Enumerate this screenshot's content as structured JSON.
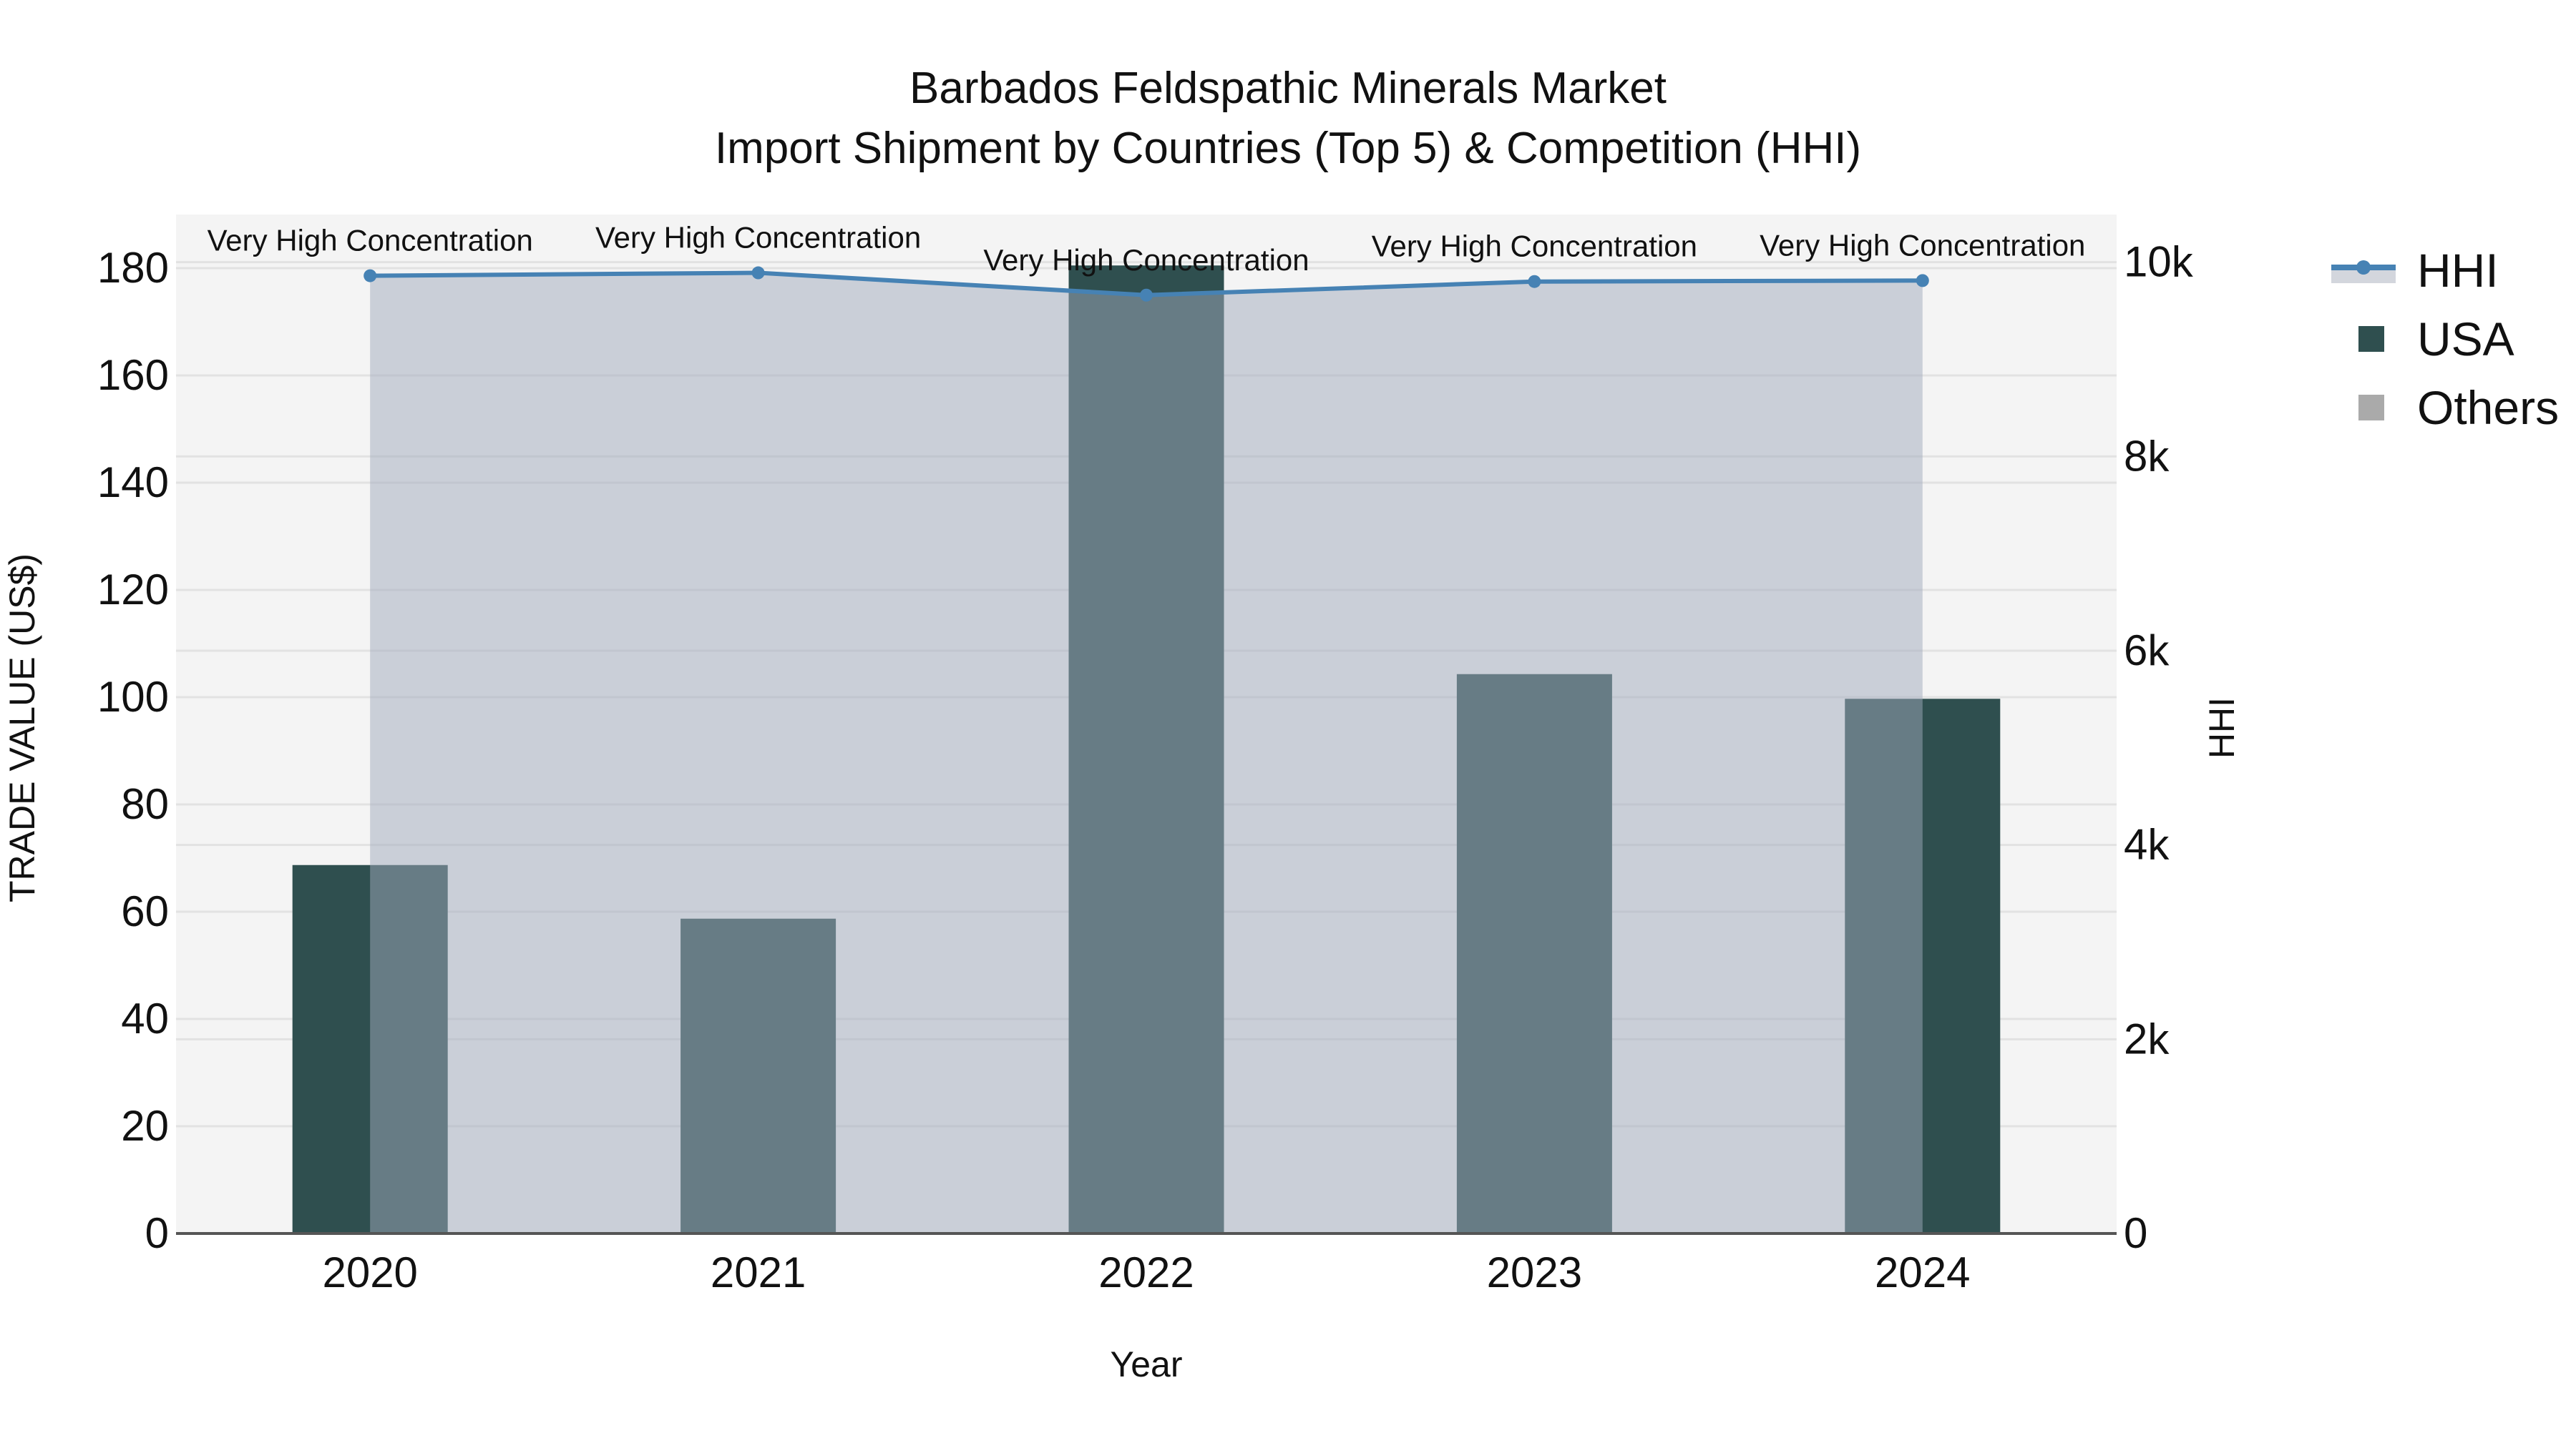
{
  "title": {
    "line1": "Barbados Feldspathic Minerals Market",
    "line2": "Import Shipment by Countries (Top 5) & Competition (HHI)"
  },
  "axes": {
    "x_title": "Year",
    "y_left_title": "TRADE VALUE (US$)",
    "y_right_title": "HHI",
    "y_left_ticks": [
      "0",
      "20",
      "40",
      "60",
      "80",
      "100",
      "120",
      "140",
      "160",
      "180"
    ],
    "y_right_ticks": [
      "0",
      "2k",
      "4k",
      "6k",
      "8k",
      "10k"
    ],
    "x_ticks": [
      "2020",
      "2021",
      "2022",
      "2023",
      "2024"
    ]
  },
  "legend": {
    "items": [
      {
        "label": "HHI",
        "type": "line",
        "color": "#4682b4"
      },
      {
        "label": "USA",
        "type": "box",
        "color": "#2f4f4f"
      },
      {
        "label": "Others",
        "type": "box",
        "color": "#aaaaaa"
      }
    ]
  },
  "annotations": [
    "Very High Concentration",
    "Very High Concentration",
    "Very High Concentration",
    "Very High Concentration",
    "Very High Concentration"
  ],
  "colors": {
    "usa": "#2f4f4f",
    "others": "#aaaaaa",
    "hhi_line": "#4682b4",
    "hhi_fill": "rgba(160,170,188,0.5)",
    "plot_bg": "#f4f4f4",
    "grid": "#e2e2e2"
  },
  "chart_data": {
    "type": "bar",
    "title": "Barbados Feldspathic Minerals Market — Import Shipment by Countries (Top 5) & Competition (HHI)",
    "xlabel": "Year",
    "ylabel": "TRADE VALUE (US$)",
    "y2label": "HHI",
    "categories": [
      "2020",
      "2021",
      "2022",
      "2023",
      "2024"
    ],
    "series": [
      {
        "name": "USA",
        "type": "bar",
        "axis": "left",
        "values": [
          68.7,
          58.7,
          180.5,
          104.3,
          99.7
        ]
      },
      {
        "name": "Others",
        "type": "bar",
        "axis": "left",
        "values": [
          0,
          0,
          0,
          0,
          0
        ]
      },
      {
        "name": "HHI",
        "type": "line",
        "axis": "right",
        "fill": "tozeroy",
        "values": [
          9860,
          9890,
          9660,
          9800,
          9810
        ],
        "labels": [
          "Very High Concentration",
          "Very High Concentration",
          "Very High Concentration",
          "Very High Concentration",
          "Very High Concentration"
        ]
      }
    ],
    "ylim": [
      0,
      190
    ],
    "y2lim": [
      0,
      10500
    ],
    "grid": true,
    "legend_position": "right"
  }
}
